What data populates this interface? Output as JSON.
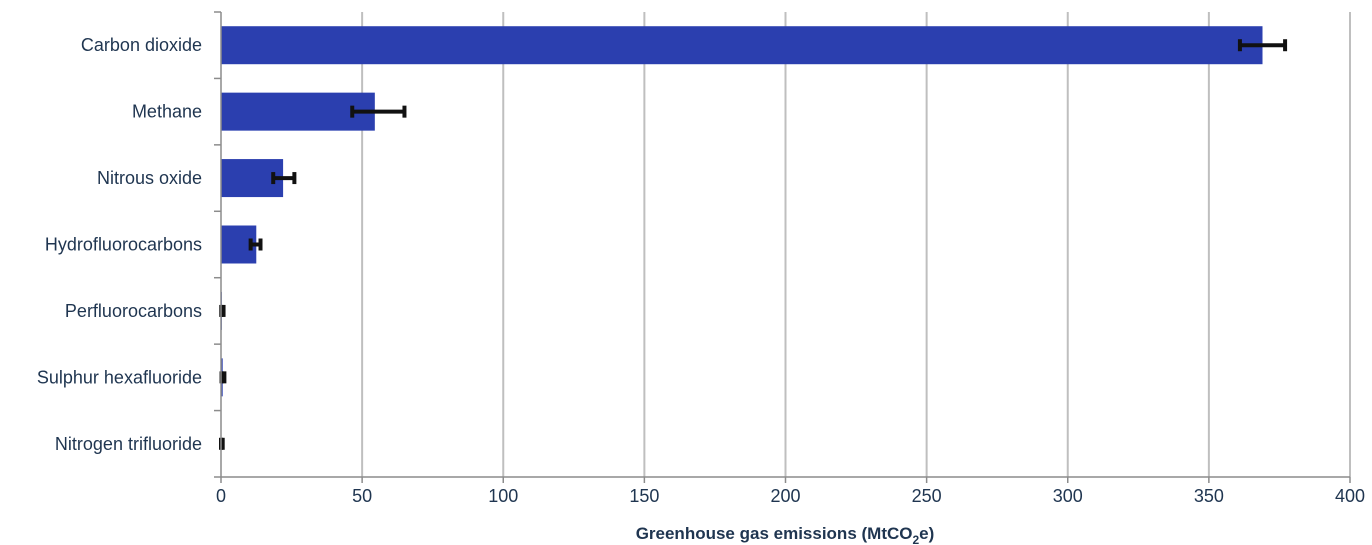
{
  "chart_data": {
    "type": "bar",
    "orientation": "horizontal",
    "categories": [
      "Carbon dioxide",
      "Methane",
      "Nitrous oxide",
      "Hydrofluorocarbons",
      "Perfluorocarbons",
      "Sulphur hexafluoride",
      "Nitrogen trifluoride"
    ],
    "values": [
      369,
      54.5,
      22,
      12.5,
      0.3,
      0.6,
      0.05
    ],
    "error_bars": [
      [
        361,
        377
      ],
      [
        46.5,
        65
      ],
      [
        18.5,
        26
      ],
      [
        10.5,
        14
      ],
      [
        0.1,
        0.9
      ],
      [
        0.2,
        1.2
      ],
      [
        0.0,
        0.6
      ]
    ],
    "xlabel": {
      "text": "Greenhouse gas emissions  (MtCO",
      "subscript": "2",
      "suffix": "e)"
    },
    "ylabel": "",
    "xlim": [
      0,
      400
    ],
    "xticks": [
      0,
      50,
      100,
      150,
      200,
      250,
      300,
      350,
      400
    ],
    "grid": "vertical",
    "legend": "none",
    "colors": {
      "bar": "#2b3faf",
      "error_bar": "#111111",
      "grid": "#bfbfbf",
      "axis": "#8c8c8c",
      "text": "#1f3550"
    }
  }
}
